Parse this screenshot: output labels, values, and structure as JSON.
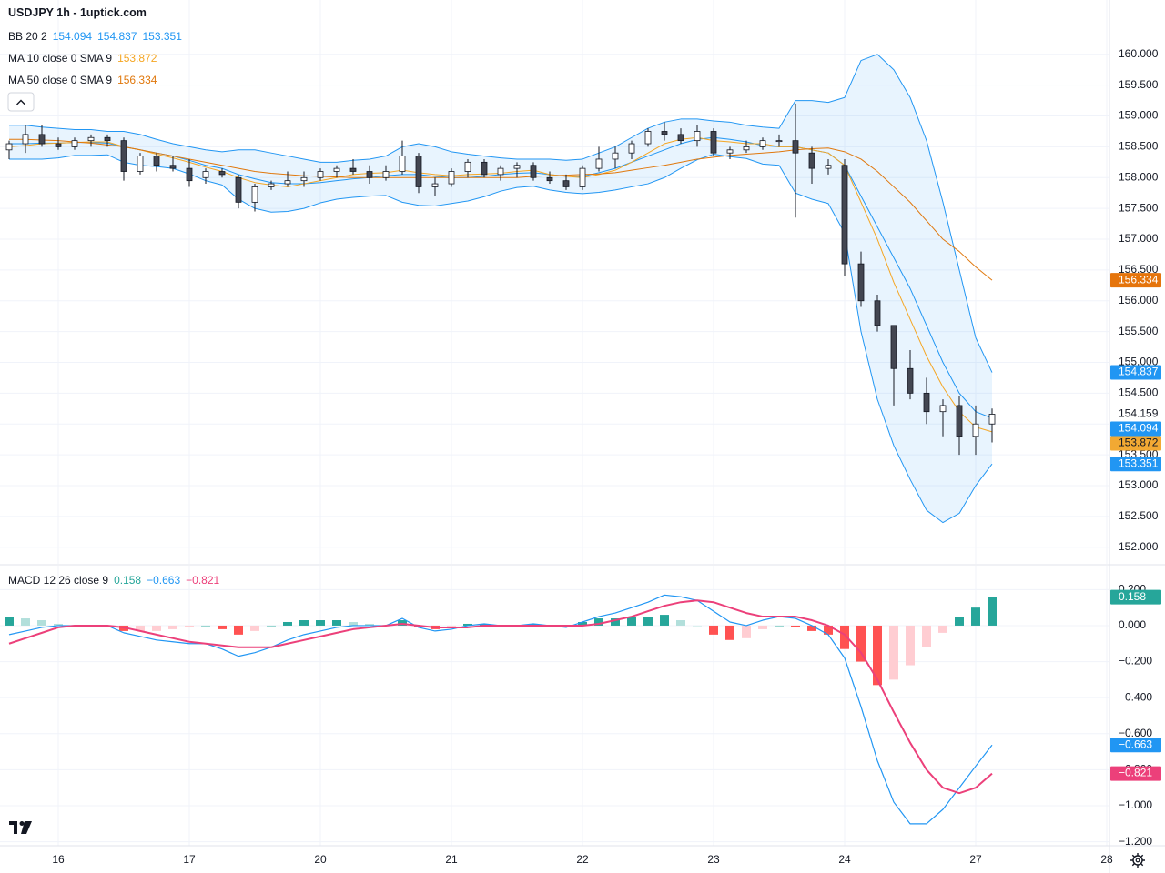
{
  "chart_data": [
    {
      "type": "candlestick",
      "title": "USDJPY 1h - 1uptick.com",
      "categories": [
        null,
        null,
        null,
        "16",
        null,
        null,
        null,
        null,
        null,
        null,
        null,
        "17",
        null,
        null,
        null,
        null,
        null,
        null,
        null,
        "20",
        null,
        null,
        null,
        null,
        null,
        null,
        null,
        "21",
        null,
        null,
        null,
        null,
        null,
        null,
        null,
        "22",
        null,
        null,
        null,
        null,
        null,
        null,
        null,
        "23",
        null,
        null,
        null,
        null,
        null,
        null,
        null,
        "24",
        null,
        null,
        null,
        null,
        null,
        null,
        null,
        "27",
        null,
        null,
        null,
        null,
        null,
        null,
        null,
        "28"
      ],
      "open": [
        158.45,
        158.55,
        158.7,
        158.55,
        158.5,
        158.6,
        158.65,
        158.6,
        158.1,
        158.35,
        158.2,
        158.15,
        158.0,
        158.1,
        158.0,
        157.6,
        157.85,
        157.9,
        157.95,
        158.0,
        158.1,
        158.15,
        158.1,
        158.0,
        158.1,
        158.35,
        157.85,
        157.9,
        158.1,
        158.25,
        158.05,
        158.15,
        158.2,
        158.0,
        157.95,
        157.85,
        158.15,
        158.3,
        158.4,
        158.55,
        158.75,
        158.7,
        158.6,
        158.75,
        158.4,
        158.45,
        158.5,
        158.6,
        158.6,
        158.4,
        158.15,
        158.2,
        156.6,
        156.0,
        155.6,
        154.9,
        154.5,
        154.2,
        154.3,
        153.8,
        154.0,
        null,
        null,
        null,
        null,
        null,
        null,
        null
      ],
      "high": [
        158.6,
        158.85,
        158.85,
        158.65,
        158.65,
        158.7,
        158.7,
        158.65,
        158.4,
        158.4,
        158.35,
        158.3,
        158.15,
        158.15,
        158.05,
        157.9,
        157.95,
        158.1,
        158.1,
        158.15,
        158.2,
        158.3,
        158.2,
        158.2,
        158.6,
        158.4,
        158.0,
        158.15,
        158.3,
        158.3,
        158.2,
        158.25,
        158.25,
        158.1,
        158.05,
        158.2,
        158.5,
        158.5,
        158.6,
        158.8,
        158.9,
        158.8,
        158.85,
        158.8,
        158.5,
        158.6,
        158.65,
        158.7,
        159.2,
        158.5,
        158.3,
        158.3,
        156.8,
        156.1,
        155.6,
        155.2,
        154.75,
        154.4,
        154.45,
        154.3,
        154.25,
        null,
        null,
        null,
        null,
        null,
        null,
        null
      ],
      "low": [
        158.3,
        158.4,
        158.5,
        158.45,
        158.45,
        158.5,
        158.5,
        157.95,
        158.05,
        158.1,
        158.1,
        157.85,
        157.9,
        158.0,
        157.5,
        157.45,
        157.8,
        157.85,
        157.85,
        157.95,
        158.0,
        158.05,
        157.9,
        157.95,
        158.05,
        157.75,
        157.7,
        157.85,
        158.0,
        158.0,
        157.95,
        158.0,
        157.95,
        157.9,
        157.8,
        157.8,
        158.1,
        158.15,
        158.3,
        158.5,
        158.6,
        158.55,
        158.5,
        158.35,
        158.3,
        158.4,
        158.45,
        158.5,
        157.35,
        157.9,
        158.05,
        156.4,
        155.9,
        155.5,
        154.3,
        154.4,
        154.0,
        153.8,
        153.5,
        153.5,
        153.7,
        null,
        null,
        null,
        null,
        null,
        null,
        null
      ],
      "close": [
        158.55,
        158.7,
        158.55,
        158.5,
        158.6,
        158.65,
        158.6,
        158.1,
        158.35,
        158.2,
        158.15,
        157.95,
        158.1,
        158.05,
        157.6,
        157.85,
        157.9,
        157.95,
        158.0,
        158.1,
        158.15,
        158.1,
        158.0,
        158.1,
        158.35,
        157.85,
        157.9,
        158.1,
        158.25,
        158.05,
        158.15,
        158.2,
        158.0,
        157.95,
        157.85,
        158.15,
        158.3,
        158.4,
        158.55,
        158.75,
        158.7,
        158.6,
        158.75,
        158.4,
        158.45,
        158.5,
        158.6,
        158.6,
        158.4,
        158.15,
        158.2,
        156.6,
        156.0,
        155.6,
        154.9,
        154.5,
        154.2,
        154.3,
        153.8,
        154.0,
        154.159,
        null,
        null,
        null,
        null,
        null,
        null,
        null
      ],
      "last_label": "154.159",
      "up_color": "#ffffff",
      "down_color": "#434651",
      "wick_color": "#131722",
      "bollinger": {
        "name": "BB 20 2",
        "color": "#2196f3",
        "fill": "rgba(33,150,243,0.1)",
        "basis": {
          "values": [
            158.55,
            158.55,
            158.56,
            158.56,
            158.57,
            158.57,
            158.56,
            158.5,
            158.45,
            158.4,
            158.35,
            158.28,
            158.2,
            158.15,
            158.05,
            157.98,
            157.92,
            157.9,
            157.9,
            157.92,
            157.95,
            157.98,
            158.0,
            158.03,
            158.05,
            158.05,
            158.02,
            158.0,
            158.0,
            158.02,
            158.05,
            158.07,
            158.08,
            158.05,
            158.02,
            158.02,
            158.08,
            158.15,
            158.25,
            158.35,
            158.45,
            158.55,
            158.62,
            158.65,
            158.62,
            158.58,
            158.52,
            158.5,
            158.5,
            158.45,
            158.4,
            158.2,
            157.7,
            157.2,
            156.7,
            156.2,
            155.6,
            155.0,
            154.5,
            154.2,
            154.094,
            null,
            null,
            null,
            null,
            null,
            null,
            null
          ],
          "last_label": "154.094"
        },
        "upper": {
          "values": [
            158.85,
            158.85,
            158.82,
            158.8,
            158.78,
            158.78,
            158.75,
            158.75,
            158.7,
            158.62,
            158.55,
            158.5,
            158.45,
            158.42,
            158.45,
            158.45,
            158.4,
            158.35,
            158.3,
            158.25,
            158.25,
            158.28,
            158.3,
            158.35,
            158.5,
            158.55,
            158.5,
            158.42,
            158.38,
            158.35,
            158.32,
            158.3,
            158.3,
            158.3,
            158.28,
            158.3,
            158.4,
            158.5,
            158.65,
            158.8,
            158.9,
            158.95,
            158.95,
            158.92,
            158.9,
            158.85,
            158.82,
            158.8,
            159.25,
            159.25,
            159.22,
            159.3,
            159.9,
            160.0,
            159.75,
            159.3,
            158.6,
            157.6,
            156.5,
            155.4,
            154.837,
            null,
            null,
            null,
            null,
            null,
            null,
            null
          ],
          "last_label": "154.837"
        },
        "lower": {
          "values": [
            158.3,
            158.3,
            158.3,
            158.32,
            158.36,
            158.36,
            158.37,
            158.25,
            158.2,
            158.18,
            158.15,
            158.06,
            157.95,
            157.88,
            157.65,
            157.5,
            157.44,
            157.45,
            157.5,
            157.59,
            157.65,
            157.68,
            157.7,
            157.71,
            157.6,
            157.55,
            157.54,
            157.58,
            157.62,
            157.69,
            157.78,
            157.84,
            157.86,
            157.8,
            157.76,
            157.74,
            157.76,
            157.8,
            157.85,
            157.9,
            158.0,
            158.15,
            158.29,
            158.38,
            158.34,
            158.31,
            158.22,
            158.2,
            157.75,
            157.65,
            157.58,
            157.1,
            155.5,
            154.4,
            153.65,
            153.1,
            152.6,
            152.4,
            152.55,
            153.0,
            153.351,
            null,
            null,
            null,
            null,
            null,
            null,
            null
          ],
          "last_label": "153.351"
        }
      },
      "series": [
        {
          "name": "MA 10 close 0 SMA 9",
          "color": "#f5a623",
          "label_color": "#f2a933",
          "values": [
            158.5,
            158.52,
            158.55,
            158.56,
            158.57,
            158.58,
            158.58,
            158.5,
            158.45,
            158.38,
            158.32,
            158.25,
            158.17,
            158.1,
            158.0,
            157.92,
            157.88,
            157.85,
            157.9,
            157.95,
            158.0,
            158.05,
            158.07,
            158.08,
            158.12,
            158.08,
            158.05,
            158.03,
            158.05,
            158.06,
            158.07,
            158.1,
            158.12,
            158.05,
            158.02,
            158.0,
            158.05,
            158.12,
            158.25,
            158.4,
            158.55,
            158.62,
            158.65,
            158.6,
            158.58,
            158.55,
            158.55,
            158.5,
            158.5,
            158.45,
            158.4,
            158.2,
            157.6,
            157.0,
            156.3,
            155.7,
            155.1,
            154.6,
            154.2,
            153.95,
            153.872,
            null,
            null,
            null,
            null,
            null,
            null,
            null
          ],
          "last_label": "153.872"
        },
        {
          "name": "MA 50 close 0 SMA 9",
          "color": "#e0780d",
          "label_color": "#e5740b",
          "values": [
            158.62,
            158.62,
            158.61,
            158.6,
            158.58,
            158.56,
            158.53,
            158.5,
            158.45,
            158.4,
            158.35,
            158.3,
            158.25,
            158.2,
            158.15,
            158.1,
            158.07,
            158.05,
            158.03,
            158.02,
            158.01,
            158.0,
            158.0,
            158.0,
            158.0,
            158.0,
            158.0,
            158.0,
            158.0,
            158.0,
            158.0,
            158.0,
            158.02,
            158.03,
            158.04,
            158.05,
            158.06,
            158.08,
            158.12,
            158.16,
            158.2,
            158.25,
            158.3,
            158.33,
            158.36,
            158.38,
            158.4,
            158.42,
            158.45,
            158.47,
            158.48,
            158.42,
            158.3,
            158.1,
            157.85,
            157.6,
            157.3,
            157.0,
            156.8,
            156.55,
            156.334,
            null,
            null,
            null,
            null,
            null,
            null,
            null
          ],
          "last_label": "156.334"
        }
      ],
      "ylim": [
        151.73,
        160.44
      ],
      "yticks": [
        {
          "value": 152,
          "label": "152.000"
        },
        {
          "value": 152.5,
          "label": "152.500"
        },
        {
          "value": 153,
          "label": "153.000"
        },
        {
          "value": 153.5,
          "label": "153.500"
        },
        {
          "value": 154,
          "label": "154.000"
        },
        {
          "value": 154.5,
          "label": "154.500"
        },
        {
          "value": 155,
          "label": "155.000"
        },
        {
          "value": 155.5,
          "label": "155.500"
        },
        {
          "value": 156,
          "label": "156.000"
        },
        {
          "value": 156.5,
          "label": "156.500"
        },
        {
          "value": 157,
          "label": "157.000"
        },
        {
          "value": 157.5,
          "label": "157.500"
        },
        {
          "value": 158,
          "label": "158.000"
        },
        {
          "value": 158.5,
          "label": "158.500"
        },
        {
          "value": 159,
          "label": "159.000"
        },
        {
          "value": 159.5,
          "label": "159.500"
        },
        {
          "value": 160,
          "label": "160.000"
        }
      ],
      "grid": true
    },
    {
      "type": "macd",
      "name": "MACD 12 26 close 9",
      "histogram": {
        "values": [
          0.05,
          0.04,
          0.03,
          0.01,
          0.0,
          0.0,
          0.0,
          -0.03,
          -0.03,
          -0.03,
          -0.02,
          -0.01,
          0.0,
          -0.02,
          -0.05,
          -0.03,
          0.0,
          0.02,
          0.03,
          0.03,
          0.03,
          0.02,
          0.01,
          0.0,
          0.03,
          -0.01,
          -0.02,
          -0.01,
          0.01,
          0.01,
          0.0,
          0.0,
          0.01,
          0.0,
          -0.01,
          0.02,
          0.04,
          0.04,
          0.05,
          0.05,
          0.06,
          0.03,
          0.0,
          -0.05,
          -0.08,
          -0.07,
          -0.02,
          0.0,
          -0.01,
          -0.03,
          -0.05,
          -0.13,
          -0.2,
          -0.33,
          -0.3,
          -0.22,
          -0.12,
          -0.04,
          0.05,
          0.1,
          0.158,
          null,
          null,
          null,
          null,
          null,
          null,
          null
        ],
        "colors": [
          "#26a69a",
          "#b2dfdb",
          "#ff5252",
          "#ffcdd2"
        ],
        "last_label": "0.158"
      },
      "macd": {
        "color": "#2196f3",
        "values": [
          -0.05,
          -0.03,
          -0.01,
          0.0,
          0.0,
          0.0,
          0.0,
          -0.04,
          -0.06,
          -0.08,
          -0.09,
          -0.1,
          -0.1,
          -0.13,
          -0.17,
          -0.15,
          -0.12,
          -0.08,
          -0.05,
          -0.03,
          -0.01,
          0.0,
          0.0,
          0.0,
          0.04,
          -0.01,
          -0.03,
          -0.02,
          0.0,
          0.01,
          0.0,
          0.0,
          0.01,
          0.0,
          -0.01,
          0.02,
          0.05,
          0.07,
          0.1,
          0.13,
          0.17,
          0.16,
          0.14,
          0.08,
          0.02,
          0.0,
          0.03,
          0.05,
          0.04,
          0.0,
          -0.05,
          -0.18,
          -0.45,
          -0.75,
          -0.98,
          -1.1,
          -1.1,
          -1.02,
          -0.9,
          -0.78,
          -0.663,
          null,
          null,
          null,
          null,
          null,
          null,
          null
        ],
        "last_label": "−0.663"
      },
      "signal": {
        "color": "#ec407a",
        "values": [
          -0.1,
          -0.07,
          -0.04,
          -0.01,
          0.0,
          0.0,
          0.0,
          -0.01,
          -0.03,
          -0.05,
          -0.07,
          -0.09,
          -0.1,
          -0.11,
          -0.12,
          -0.12,
          -0.12,
          -0.1,
          -0.08,
          -0.06,
          -0.04,
          -0.02,
          -0.01,
          0.0,
          0.01,
          0.0,
          -0.01,
          -0.01,
          -0.01,
          0.0,
          0.0,
          0.0,
          0.0,
          0.0,
          0.0,
          0.0,
          0.01,
          0.03,
          0.05,
          0.08,
          0.11,
          0.13,
          0.14,
          0.13,
          0.1,
          0.07,
          0.05,
          0.05,
          0.05,
          0.03,
          0.0,
          -0.05,
          -0.15,
          -0.3,
          -0.48,
          -0.65,
          -0.8,
          -0.9,
          -0.93,
          -0.9,
          -0.821,
          null,
          null,
          null,
          null,
          null,
          null,
          null
        ],
        "last_label": "−0.821"
      },
      "ylim": [
        -1.222,
        0.333
      ],
      "yticks": [
        {
          "value": 0.2,
          "label": "0.200"
        },
        {
          "value": 0,
          "label": "0.000"
        },
        {
          "value": -0.2,
          "label": "−0.200"
        },
        {
          "value": -0.4,
          "label": "−0.400"
        },
        {
          "value": -0.6,
          "label": "−0.600"
        },
        {
          "value": -0.8,
          "label": "−0.800"
        },
        {
          "value": -1,
          "label": "−1.000"
        },
        {
          "value": -1.2,
          "label": "−1.200"
        }
      ],
      "grid": true
    }
  ]
}
